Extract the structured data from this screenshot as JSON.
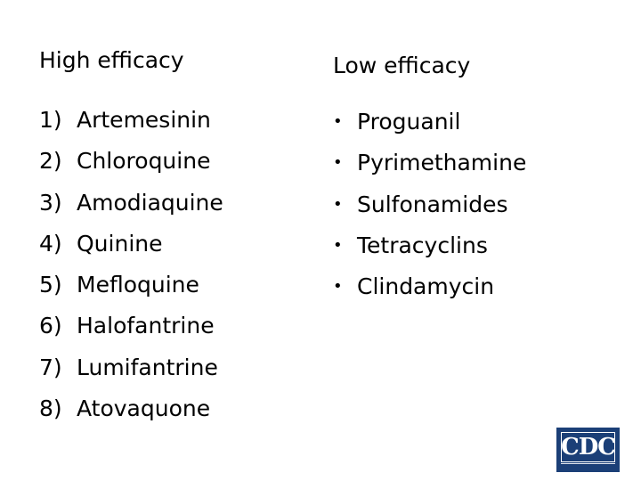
{
  "high": {
    "heading": "High efficacy",
    "items": [
      {
        "num": "1)",
        "label": "Artemesinin"
      },
      {
        "num": "2)",
        "label": "Chloroquine"
      },
      {
        "num": "3)",
        "label": "Amodiaquine"
      },
      {
        "num": "4)",
        "label": "Quinine"
      },
      {
        "num": "5)",
        "label": "Mefloquine"
      },
      {
        "num": "6)",
        "label": "Halofantrine"
      },
      {
        "num": "7)",
        "label": "Lumifantrine"
      },
      {
        "num": "8)",
        "label": "Atovaquone"
      }
    ]
  },
  "low": {
    "heading": "Low efficacy",
    "bullet": "•",
    "items": [
      {
        "label": "Proguanil"
      },
      {
        "label": "Pyrimethamine"
      },
      {
        "label": "Sulfonamides"
      },
      {
        "label": "Tetracyclins"
      },
      {
        "label": "Clindamycin"
      }
    ]
  },
  "logo": {
    "text": "CDC",
    "color": "#1b3f77"
  }
}
